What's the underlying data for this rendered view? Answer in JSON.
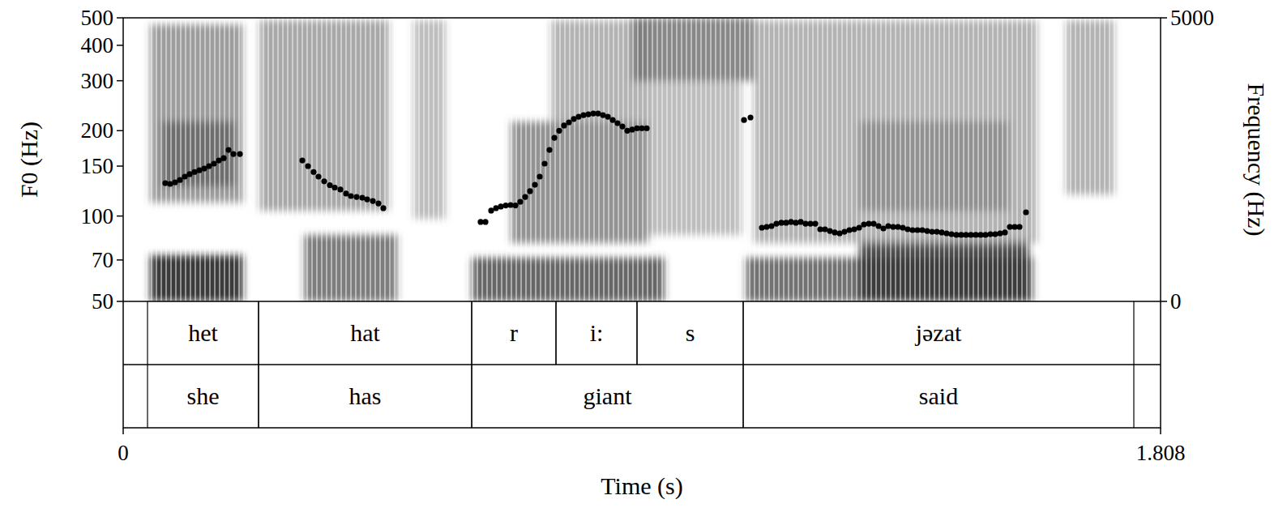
{
  "chart_data": {
    "type": "scatter",
    "x_label": "Time (s)",
    "y_label": "F0 (Hz)",
    "y2_label": "Frequency (Hz)",
    "xlim": [
      0,
      1.808
    ],
    "xticks": [
      0,
      1.808
    ],
    "ylim": [
      50,
      500
    ],
    "yticks": [
      50,
      70,
      100,
      150,
      200,
      300,
      400,
      500
    ],
    "log": "y",
    "y2lim": [
      0,
      5000
    ],
    "y2ticks": [
      0,
      5000
    ],
    "color": "#000000",
    "marker": "circle",
    "x": [
      0.0734,
      0.0819,
      0.0904,
      0.0989,
      0.1074,
      0.1158,
      0.1243,
      0.1328,
      0.1413,
      0.1497,
      0.1582,
      0.1667,
      0.1752,
      0.1836,
      0.1921,
      0.2034,
      0.3122,
      0.3221,
      0.3319,
      0.3404,
      0.3503,
      0.3602,
      0.3687,
      0.3786,
      0.3884,
      0.3969,
      0.4068,
      0.4167,
      0.4252,
      0.4351,
      0.4449,
      0.4534,
      0.6229,
      0.6314,
      0.6413,
      0.6498,
      0.6582,
      0.6667,
      0.6752,
      0.6837,
      0.6921,
      0.7006,
      0.7091,
      0.7176,
      0.726,
      0.7345,
      0.743,
      0.7515,
      0.7599,
      0.7684,
      0.7769,
      0.7854,
      0.7938,
      0.8023,
      0.8108,
      0.8193,
      0.8277,
      0.8362,
      0.8447,
      0.8532,
      0.8616,
      0.8701,
      0.8786,
      0.8871,
      0.8955,
      0.904,
      0.9125,
      1.082,
      1.0933,
      1.1131,
      1.1215,
      1.13,
      1.1385,
      1.147,
      1.1554,
      1.1639,
      1.1724,
      1.1809,
      1.1893,
      1.1978,
      1.2063,
      1.2148,
      1.2232,
      1.2317,
      1.2402,
      1.2487,
      1.2571,
      1.2656,
      1.2741,
      1.2826,
      1.291,
      1.2995,
      1.308,
      1.3165,
      1.3249,
      1.3334,
      1.3419,
      1.3504,
      1.3588,
      1.3673,
      1.3758,
      1.3843,
      1.3927,
      1.4012,
      1.4097,
      1.4182,
      1.4266,
      1.4351,
      1.4436,
      1.4521,
      1.4605,
      1.469,
      1.4775,
      1.486,
      1.4944,
      1.5029,
      1.5114,
      1.5199,
      1.5283,
      1.5368,
      1.5453,
      1.5538,
      1.5622,
      1.5735
    ],
    "values": [
      130.6,
      129.8,
      131.5,
      134,
      137.7,
      140.5,
      143,
      145,
      147,
      150,
      153,
      157,
      160,
      171,
      165.5,
      165.5,
      157,
      150,
      143,
      137.7,
      132.5,
      128.5,
      126,
      124,
      120,
      117.6,
      116.8,
      116,
      114.5,
      113,
      110.8,
      106.6,
      95.3,
      95.3,
      104.5,
      106.6,
      108,
      109,
      109.4,
      109,
      112.3,
      116.8,
      122.4,
      128.9,
      137.7,
      153,
      171,
      188.8,
      200,
      208.5,
      214,
      220,
      224,
      227,
      228.5,
      230,
      230,
      227,
      224,
      218,
      212.6,
      207,
      200,
      201.8,
      204,
      204,
      204,
      218,
      222.6,
      91,
      91.6,
      92.2,
      94,
      94.7,
      94.7,
      95.3,
      94.7,
      95.3,
      94,
      94,
      94,
      89.8,
      89.8,
      88.6,
      87.5,
      86.9,
      88,
      89.2,
      89.8,
      91,
      93.4,
      94,
      94,
      92.2,
      90.4,
      92.2,
      91.6,
      91.6,
      91,
      89.8,
      89.2,
      89.2,
      89.2,
      88.6,
      88,
      88,
      87.5,
      86.9,
      86.3,
      85.8,
      85.8,
      85.8,
      85.8,
      85.8,
      85.8,
      85.8,
      86.3,
      86.3,
      86.9,
      87.5,
      91.6,
      91.6,
      91.6,
      103.1
    ],
    "spectrogram": [
      {
        "t0": 0.0466,
        "t1": 0.2091,
        "f0": 0,
        "f1": 814,
        "level": 0.9
      },
      {
        "t0": 0.0466,
        "t1": 0.2091,
        "f0": 1743,
        "f1": 4886,
        "level": 0.45
      },
      {
        "t0": 0.0678,
        "t1": 0.1949,
        "f0": 2029,
        "f1": 3171,
        "level": 0.6
      },
      {
        "t0": 0.2373,
        "t1": 0.4633,
        "f0": 1600,
        "f1": 4957,
        "level": 0.4
      },
      {
        "t0": 0.315,
        "t1": 0.4774,
        "f0": 0,
        "f1": 1171,
        "level": 0.6
      },
      {
        "t0": 0.5057,
        "t1": 0.5622,
        "f0": 1457,
        "f1": 4957,
        "level": 0.3
      },
      {
        "t0": 0.6074,
        "t1": 0.9436,
        "f0": 0,
        "f1": 771,
        "level": 0.7
      },
      {
        "t0": 0.6752,
        "t1": 0.9153,
        "f0": 1029,
        "f1": 3171,
        "level": 0.5
      },
      {
        "t0": 0.7458,
        "t1": 0.9153,
        "f0": 3171,
        "f1": 4957,
        "level": 0.35
      },
      {
        "t0": 0.8871,
        "t1": 1.0989,
        "f0": 3886,
        "f1": 5000,
        "level": 0.55
      },
      {
        "t0": 0.9153,
        "t1": 1.0777,
        "f0": 1171,
        "f1": 3886,
        "level": 0.3
      },
      {
        "t0": 1.0848,
        "t1": 1.5862,
        "f0": 0,
        "f1": 771,
        "level": 0.65
      },
      {
        "t0": 1.2826,
        "t1": 1.5792,
        "f0": 0,
        "f1": 1100,
        "level": 0.8
      },
      {
        "t0": 1.0989,
        "t1": 1.5933,
        "f0": 1029,
        "f1": 4957,
        "level": 0.35
      },
      {
        "t0": 1.2826,
        "t1": 1.5438,
        "f0": 1600,
        "f1": 3171,
        "level": 0.45
      },
      {
        "t0": 1.6427,
        "t1": 1.7275,
        "f0": 1886,
        "f1": 4957,
        "level": 0.35
      }
    ],
    "tiers": [
      {
        "intervals": [
          {
            "start": 0.0424,
            "end": 0.2359,
            "text": "het"
          },
          {
            "start": 0.2359,
            "end": 0.6074,
            "text": "hat"
          },
          {
            "start": 0.6074,
            "end": 0.7543,
            "text": "r"
          },
          {
            "start": 0.7543,
            "end": 0.8955,
            "text": "i:"
          },
          {
            "start": 0.8955,
            "end": 1.0806,
            "text": "s"
          },
          {
            "start": 1.0806,
            "end": 1.7614,
            "text": "jəzat"
          }
        ]
      },
      {
        "intervals": [
          {
            "start": 0.0424,
            "end": 0.2359,
            "text": "she"
          },
          {
            "start": 0.2359,
            "end": 0.6074,
            "text": "has"
          },
          {
            "start": 0.6074,
            "end": 1.0806,
            "text": "giant"
          },
          {
            "start": 1.0806,
            "end": 1.7614,
            "text": "said"
          }
        ]
      }
    ]
  }
}
